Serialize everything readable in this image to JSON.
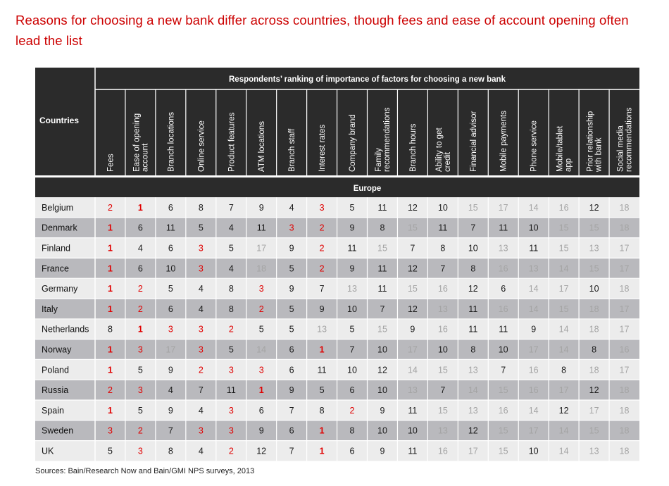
{
  "title": "Reasons for choosing a new bank differ across countries, though fees and ease of account opening often lead the list",
  "source": "Sources: Bain/Research Now and Bain/GMI NPS surveys, 2013",
  "colors": {
    "title_red": "#cc0000",
    "header_dark": "#2b2b2b",
    "row_light": "#ececec",
    "row_dark": "#b9b9bd",
    "rank_top3": "#e00000",
    "rank_low": "#a4a4a4",
    "rank_normal": "#1a1a1a"
  },
  "chart_data": {
    "type": "table",
    "super_header": "Respondents’ ranking of importance of factors for choosing a new bank",
    "row_header": "Countries",
    "section": "Europe",
    "columns": [
      [
        "Fees"
      ],
      [
        "Ease of opening",
        "account"
      ],
      [
        "Branch locations"
      ],
      [
        "Online service"
      ],
      [
        "Product features"
      ],
      [
        "ATM locations"
      ],
      [
        "Branch staff"
      ],
      [
        "Interest rates"
      ],
      [
        "Company brand"
      ],
      [
        "Family",
        "recommendations"
      ],
      [
        "Branch hours"
      ],
      [
        "Ability to get",
        "credit"
      ],
      [
        "Financial advisor"
      ],
      [
        "Mobile payments"
      ],
      [
        "Phone service"
      ],
      [
        "Mobile/tablet",
        "app"
      ],
      [
        "Prior relationship",
        "with bank"
      ],
      [
        "Social media",
        "recommendations"
      ]
    ],
    "rows": [
      {
        "country": "Belgium",
        "values": [
          2,
          1,
          6,
          8,
          7,
          9,
          4,
          3,
          5,
          11,
          12,
          10,
          15,
          17,
          14,
          16,
          12,
          18
        ]
      },
      {
        "country": "Denmark",
        "values": [
          1,
          6,
          11,
          5,
          4,
          11,
          3,
          2,
          9,
          8,
          15,
          11,
          7,
          11,
          10,
          15,
          15,
          18
        ]
      },
      {
        "country": "Finland",
        "values": [
          1,
          4,
          6,
          3,
          5,
          17,
          9,
          2,
          11,
          15,
          7,
          8,
          10,
          13,
          11,
          15,
          13,
          17
        ]
      },
      {
        "country": "France",
        "values": [
          1,
          6,
          10,
          3,
          4,
          18,
          5,
          2,
          9,
          11,
          12,
          7,
          8,
          16,
          13,
          14,
          15,
          17
        ]
      },
      {
        "country": "Germany",
        "values": [
          1,
          2,
          5,
          4,
          8,
          3,
          9,
          7,
          13,
          11,
          15,
          16,
          12,
          6,
          14,
          17,
          10,
          18
        ]
      },
      {
        "country": "Italy",
        "values": [
          1,
          2,
          6,
          4,
          8,
          2,
          5,
          9,
          10,
          7,
          12,
          13,
          11,
          16,
          14,
          15,
          18,
          17
        ]
      },
      {
        "country": "Netherlands",
        "values": [
          8,
          1,
          3,
          3,
          2,
          5,
          5,
          13,
          5,
          15,
          9,
          16,
          11,
          11,
          9,
          14,
          18,
          17
        ]
      },
      {
        "country": "Norway",
        "values": [
          1,
          3,
          17,
          3,
          5,
          14,
          6,
          1,
          7,
          10,
          17,
          10,
          8,
          10,
          17,
          14,
          8,
          16
        ]
      },
      {
        "country": "Poland",
        "values": [
          1,
          5,
          9,
          2,
          3,
          3,
          6,
          11,
          10,
          12,
          14,
          15,
          13,
          7,
          16,
          8,
          18,
          17
        ]
      },
      {
        "country": "Russia",
        "values": [
          2,
          3,
          4,
          7,
          11,
          1,
          9,
          5,
          6,
          10,
          13,
          7,
          14,
          15,
          16,
          17,
          12,
          18
        ]
      },
      {
        "country": "Spain",
        "values": [
          1,
          5,
          9,
          4,
          3,
          6,
          7,
          8,
          2,
          9,
          11,
          15,
          13,
          16,
          14,
          12,
          17,
          18
        ]
      },
      {
        "country": "Sweden",
        "values": [
          3,
          2,
          7,
          3,
          3,
          9,
          6,
          1,
          8,
          10,
          10,
          13,
          12,
          15,
          17,
          14,
          15,
          18
        ]
      },
      {
        "country": "UK",
        "values": [
          5,
          3,
          8,
          4,
          2,
          12,
          7,
          1,
          6,
          9,
          11,
          16,
          17,
          15,
          10,
          14,
          13,
          18
        ]
      }
    ]
  }
}
